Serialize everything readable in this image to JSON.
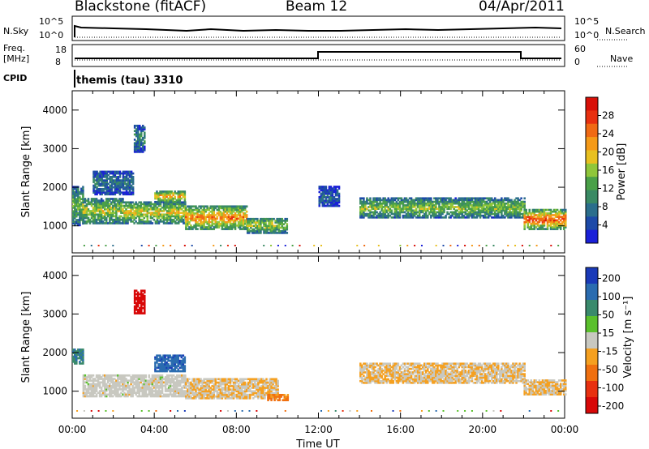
{
  "header": {
    "station": "Blackstone (fitACF)",
    "beam": "Beam 12",
    "date": "04/Apr/2011"
  },
  "top_panels": {
    "nsky_label": "N.Sky",
    "nsky_ticks": [
      "10^5",
      "10^0"
    ],
    "nsearch_label": "N.Search",
    "nsearch_ticks": [
      "10^5",
      "10^0"
    ],
    "freq_label": "Freq.",
    "freq_unit": "[MHz]",
    "freq_ticks": [
      "18",
      "8"
    ],
    "nave_label": "Nave",
    "nave_ticks": [
      "60",
      "0"
    ],
    "cpid_label": "CPID",
    "cpid_value": "themis (tau) 3310"
  },
  "chart_data": [
    {
      "type": "heatmap",
      "name": "power",
      "ylabel": "Slant Range [km]",
      "ylim": [
        300,
        4500
      ],
      "yticks": [
        "1000",
        "2000",
        "3000",
        "4000"
      ],
      "xlim": [
        0,
        24
      ],
      "colorbar": {
        "label": "Power [dB]",
        "ticks": [
          "4",
          "8",
          "12",
          "16",
          "20",
          "24",
          "28"
        ],
        "colors": [
          "#1a20d8",
          "#1d4aa8",
          "#2b6e8c",
          "#3a8a64",
          "#4aa048",
          "#8fc63a",
          "#e8c020",
          "#f59a18",
          "#f06a14",
          "#e83010",
          "#d81008"
        ]
      },
      "bands": [
        {
          "t0": 0.0,
          "t1": 0.5,
          "r0": 1000,
          "r1": 2000,
          "level": 0.45
        },
        {
          "t0": 0.5,
          "t1": 2.5,
          "r0": 1050,
          "r1": 1700,
          "level": 0.55
        },
        {
          "t0": 1.0,
          "t1": 3.0,
          "r0": 1800,
          "r1": 2400,
          "level": 0.25
        },
        {
          "t0": 2.5,
          "t1": 5.5,
          "r0": 1050,
          "r1": 1600,
          "level": 0.6
        },
        {
          "t0": 4.0,
          "t1": 5.5,
          "r0": 1600,
          "r1": 1900,
          "level": 0.7
        },
        {
          "t0": 5.5,
          "t1": 8.5,
          "r0": 900,
          "r1": 1500,
          "level": 0.75
        },
        {
          "t0": 8.5,
          "t1": 10.5,
          "r0": 800,
          "r1": 1200,
          "level": 0.55
        },
        {
          "t0": 12.0,
          "t1": 13.0,
          "r0": 1500,
          "r1": 2000,
          "level": 0.2
        },
        {
          "t0": 14.0,
          "t1": 22.0,
          "r0": 1200,
          "r1": 1700,
          "level": 0.5
        },
        {
          "t0": 22.0,
          "t1": 24.0,
          "r0": 900,
          "r1": 1400,
          "level": 0.85
        },
        {
          "t0": 3.0,
          "t1": 3.5,
          "r0": 2900,
          "r1": 3600,
          "level": 0.3
        }
      ]
    },
    {
      "type": "heatmap",
      "name": "velocity",
      "ylabel": "Slant Range [km]",
      "ylim": [
        300,
        4500
      ],
      "yticks": [
        "1000",
        "2000",
        "3000",
        "4000"
      ],
      "xlim": [
        0,
        24
      ],
      "xticks": [
        "00:00",
        "04:00",
        "08:00",
        "12:00",
        "16:00",
        "20:00",
        "00:00"
      ],
      "xlabel": "Time UT",
      "colorbar": {
        "label": "Velocity [m s⁻¹]",
        "ticks": [
          "200",
          "100",
          "50",
          "15",
          "-15",
          "-50",
          "-100",
          "-200"
        ],
        "colors": [
          "#1a3ab8",
          "#2a6cb0",
          "#3a8a6c",
          "#5ac02c",
          "#c8c8c0",
          "#f5a020",
          "#f07010",
          "#e83010",
          "#d80808"
        ]
      },
      "bands": [
        {
          "t0": 0.0,
          "t1": 0.5,
          "r0": 1700,
          "r1": 2100,
          "level": 0.75
        },
        {
          "t0": 0.5,
          "t1": 5.5,
          "r0": 850,
          "r1": 1400,
          "level": 0.5
        },
        {
          "t0": 4.0,
          "t1": 5.5,
          "r0": 1500,
          "r1": 1950,
          "level": 0.85
        },
        {
          "t0": 5.5,
          "t1": 10.0,
          "r0": 800,
          "r1": 1300,
          "level": 0.45
        },
        {
          "t0": 9.5,
          "t1": 10.5,
          "r0": 750,
          "r1": 900,
          "level": 0.3
        },
        {
          "t0": 14.0,
          "t1": 22.0,
          "r0": 1200,
          "r1": 1700,
          "level": 0.45
        },
        {
          "t0": 22.0,
          "t1": 24.0,
          "r0": 900,
          "r1": 1300,
          "level": 0.45
        },
        {
          "t0": 3.0,
          "t1": 3.5,
          "r0": 3000,
          "r1": 3600,
          "level": 0.05
        }
      ]
    }
  ]
}
